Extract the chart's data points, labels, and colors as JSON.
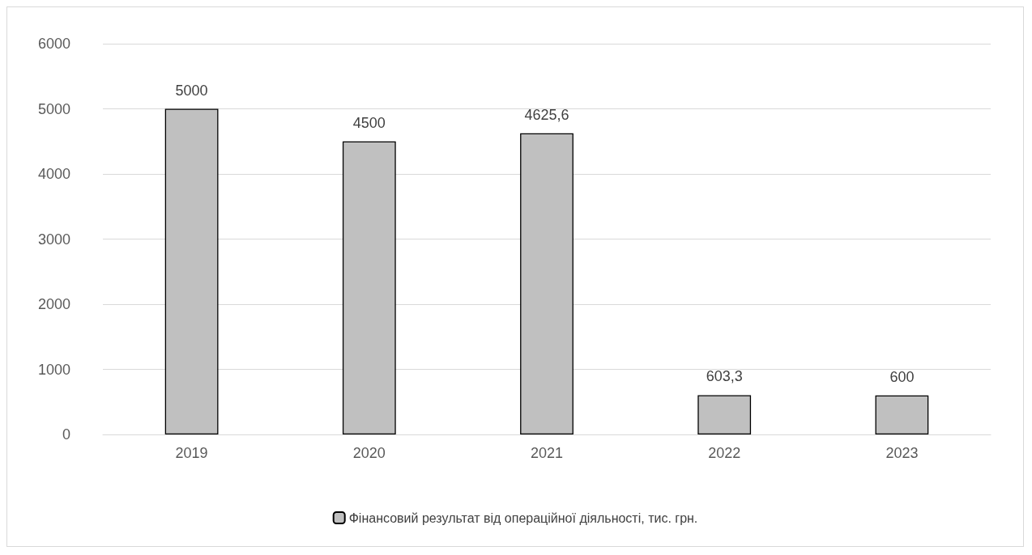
{
  "chart_data": {
    "type": "bar",
    "categories": [
      "2019",
      "2020",
      "2021",
      "2022",
      "2023"
    ],
    "series": [
      {
        "name": "Фінансовий результат від операційної діяльності, тис. грн.",
        "color": "#c0c0c0",
        "values": [
          5000,
          4500,
          4625.6,
          603.3,
          600
        ],
        "value_labels": [
          "5000",
          "4500",
          "4625,6",
          "603,3",
          "600"
        ]
      }
    ],
    "ylim": [
      0,
      6000
    ],
    "yticks": [
      0,
      1000,
      2000,
      3000,
      4000,
      5000,
      6000
    ],
    "grid": "y",
    "legend": "bottom"
  }
}
